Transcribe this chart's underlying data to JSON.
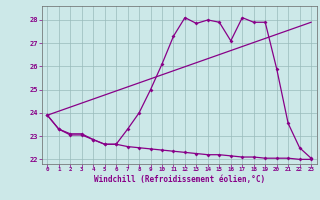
{
  "xlabel": "Windchill (Refroidissement éolien,°C)",
  "bg_color": "#cce8e8",
  "line_color": "#880088",
  "grid_color": "#99bbbb",
  "xlim": [
    -0.5,
    23.5
  ],
  "ylim": [
    21.8,
    28.6
  ],
  "yticks": [
    22,
    23,
    24,
    25,
    26,
    27,
    28
  ],
  "xticks": [
    0,
    1,
    2,
    3,
    4,
    5,
    6,
    7,
    8,
    9,
    10,
    11,
    12,
    13,
    14,
    15,
    16,
    17,
    18,
    19,
    20,
    21,
    22,
    23
  ],
  "series": [
    {
      "x": [
        0,
        1,
        2,
        3,
        4,
        5,
        6,
        7,
        8,
        9,
        10,
        11,
        12,
        13,
        14,
        15,
        16,
        17,
        18,
        19,
        20,
        21,
        22,
        23
      ],
      "y": [
        23.9,
        23.3,
        23.1,
        23.1,
        22.85,
        22.65,
        22.65,
        23.3,
        24.0,
        25.0,
        26.1,
        27.3,
        28.1,
        27.85,
        28.0,
        27.9,
        27.1,
        28.1,
        27.9,
        27.9,
        25.9,
        23.55,
        22.5,
        22.05
      ]
    },
    {
      "x": [
        0,
        23
      ],
      "y": [
        23.9,
        27.9
      ]
    },
    {
      "x": [
        0,
        1,
        2,
        3,
        4,
        5,
        6,
        7,
        8,
        9,
        10,
        11,
        12,
        13,
        14,
        15,
        16,
        17,
        18,
        19,
        20,
        21,
        22,
        23
      ],
      "y": [
        23.9,
        23.3,
        23.05,
        23.05,
        22.85,
        22.65,
        22.65,
        22.55,
        22.5,
        22.45,
        22.4,
        22.35,
        22.3,
        22.25,
        22.2,
        22.2,
        22.15,
        22.1,
        22.1,
        22.05,
        22.05,
        22.05,
        22.0,
        22.0
      ]
    }
  ]
}
